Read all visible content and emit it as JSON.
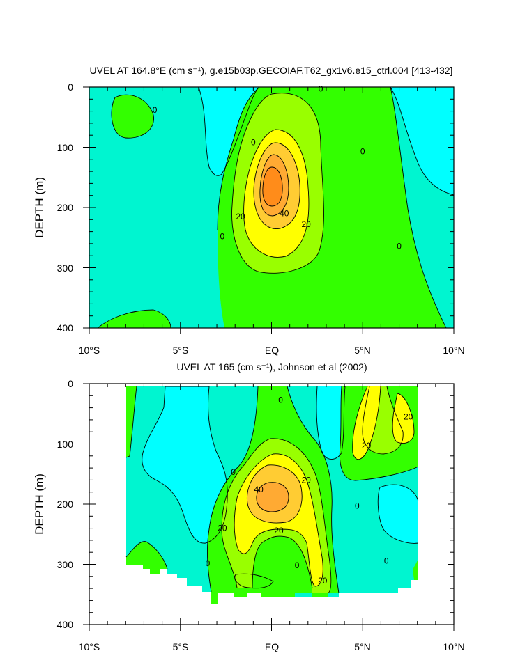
{
  "chart_data": [
    {
      "type": "contour",
      "title": "UVEL AT 164.8°E (cm s⁻¹), g.e15b03p.GECOIAF.T62_gx1v6.e15_ctrl.004 [413-432]",
      "ylabel": "DEPTH (m)",
      "xlim": [
        -10,
        10
      ],
      "ylim": [
        400,
        0
      ],
      "x_ticks": [
        -10,
        -5,
        0,
        5,
        10
      ],
      "x_tick_labels": [
        "10°S",
        "5°S",
        "EQ",
        "5°N",
        "10°N"
      ],
      "y_ticks": [
        0,
        100,
        200,
        300,
        400
      ],
      "y_tick_labels": [
        "0",
        "100",
        "200",
        "300",
        "400"
      ],
      "contour_levels": [
        -10,
        0,
        10,
        20,
        30,
        40,
        50
      ],
      "fill_colors": [
        "#00ffff",
        "#00f5d0",
        "#33ff00",
        "#99ff00",
        "#ffff00",
        "#ffcc33",
        "#ffaa33",
        "#ff8c1a"
      ],
      "contour_labels": [
        {
          "text": "0",
          "x": -6.4,
          "y": 38
        },
        {
          "text": "0",
          "x": 2.7,
          "y": 3
        },
        {
          "text": "0",
          "x": -1.0,
          "y": 92
        },
        {
          "text": "0",
          "x": 5.0,
          "y": 107
        },
        {
          "text": "0",
          "x": -2.7,
          "y": 248
        },
        {
          "text": "0",
          "x": 7.0,
          "y": 264
        },
        {
          "text": "20",
          "x": -1.7,
          "y": 215
        },
        {
          "text": "40",
          "x": 0.7,
          "y": 210
        },
        {
          "text": "20",
          "x": 1.9,
          "y": 228
        }
      ]
    },
    {
      "type": "contour",
      "title": "UVEL AT 165 (cm s⁻¹), Johnson et al (2002)",
      "ylabel": "DEPTH (m)",
      "xlim": [
        -10,
        10
      ],
      "ylim": [
        400,
        0
      ],
      "x_ticks": [
        -10,
        -5,
        0,
        5,
        10
      ],
      "x_tick_labels": [
        "10°S",
        "5°S",
        "EQ",
        "5°N",
        "10°N"
      ],
      "y_ticks": [
        0,
        100,
        200,
        300,
        400
      ],
      "y_tick_labels": [
        "0",
        "100",
        "200",
        "300",
        "400"
      ],
      "contour_levels": [
        -10,
        0,
        10,
        20,
        30,
        40
      ],
      "fill_colors": [
        "#00ffff",
        "#00f5d0",
        "#33ff00",
        "#99ff00",
        "#ffff00",
        "#ffcc33",
        "#ffaa33"
      ],
      "contour_labels": [
        {
          "text": "0",
          "x": 0.5,
          "y": 27
        },
        {
          "text": "20",
          "x": 7.5,
          "y": 55
        },
        {
          "text": "20",
          "x": 5.2,
          "y": 103
        },
        {
          "text": "0",
          "x": -2.1,
          "y": 147
        },
        {
          "text": "20",
          "x": 1.9,
          "y": 160
        },
        {
          "text": "40",
          "x": -0.7,
          "y": 176
        },
        {
          "text": "0",
          "x": 4.7,
          "y": 203
        },
        {
          "text": "20",
          "x": -2.7,
          "y": 240
        },
        {
          "text": "20",
          "x": 0.4,
          "y": 244
        },
        {
          "text": "0",
          "x": -3.5,
          "y": 298
        },
        {
          "text": "0",
          "x": 1.4,
          "y": 302
        },
        {
          "text": "0",
          "x": 6.3,
          "y": 294
        },
        {
          "text": "20",
          "x": 2.8,
          "y": 327
        }
      ]
    }
  ]
}
